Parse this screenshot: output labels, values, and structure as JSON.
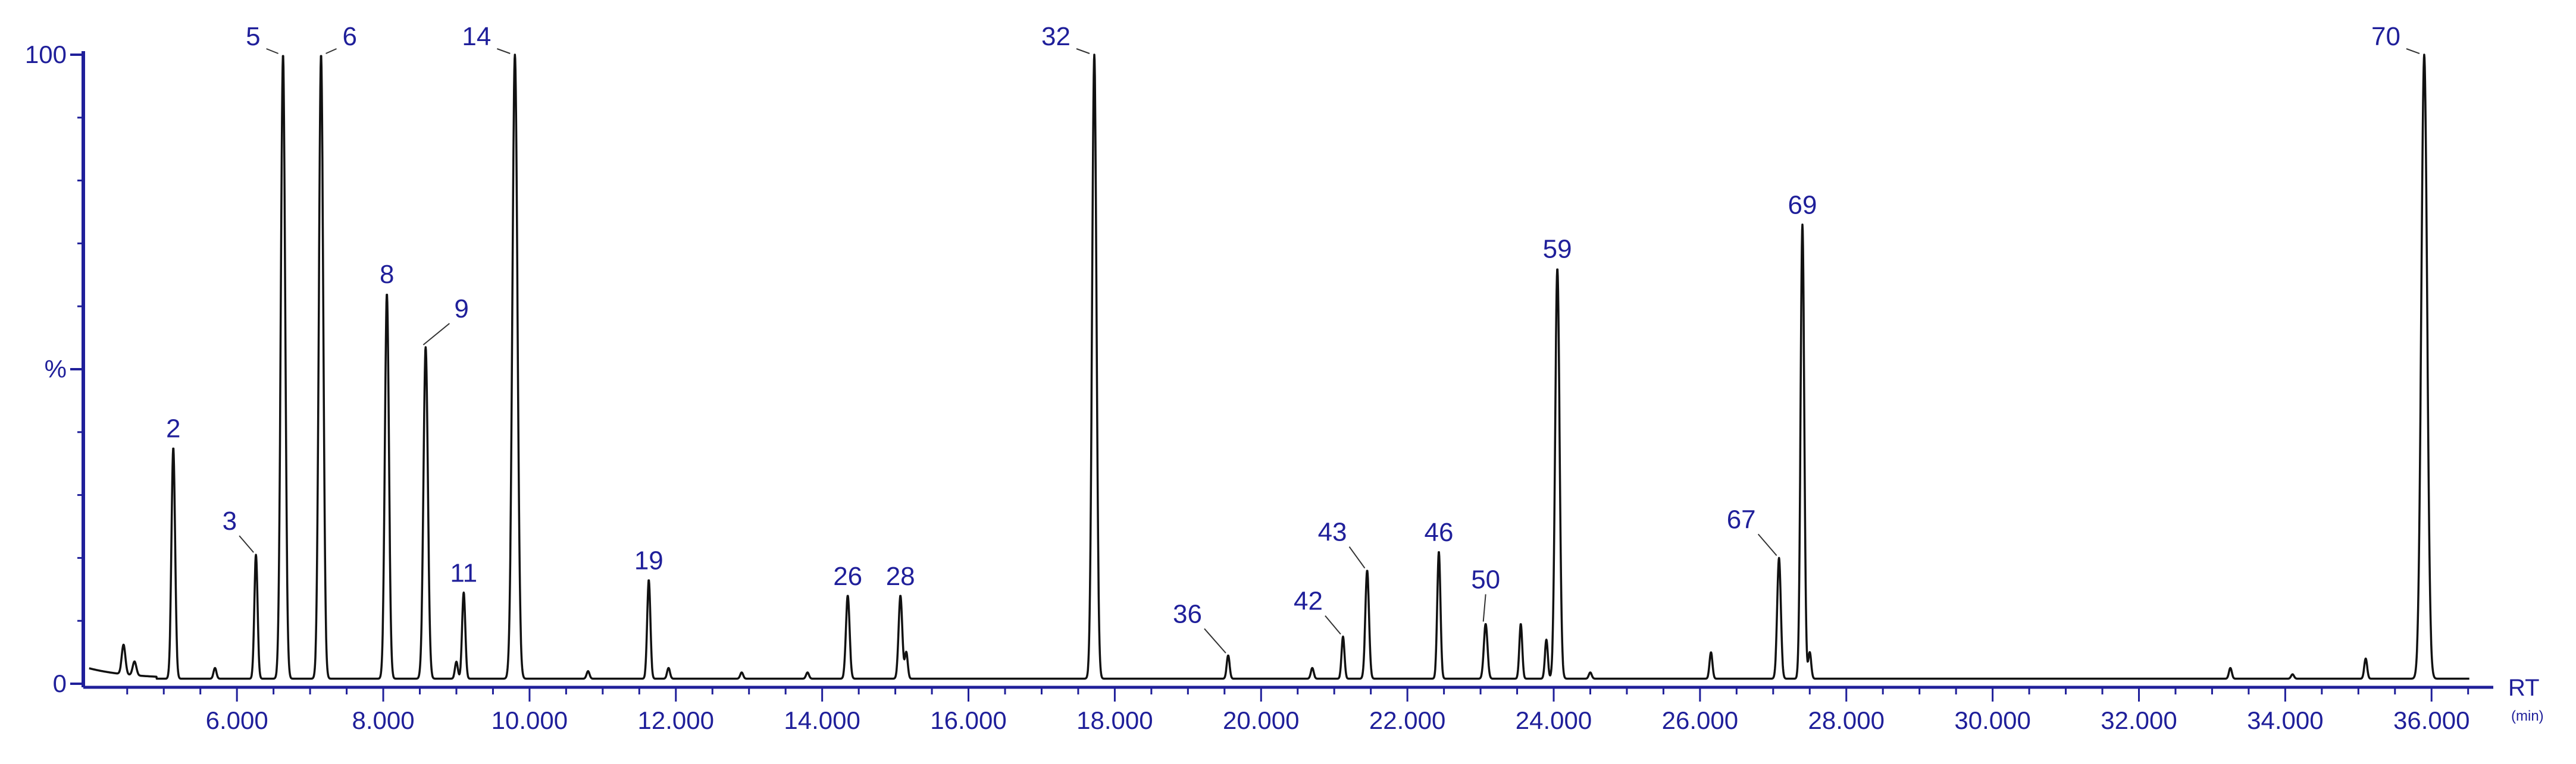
{
  "colors": {
    "trace": "#111111",
    "axis": "#1f1f9a",
    "text": "#1f1f9a"
  },
  "chart_data": {
    "type": "line",
    "title": "",
    "xlabel": "RT",
    "x_unit": "(min)",
    "ylabel": "%",
    "xlim": [
      3.9,
      36.6
    ],
    "ylim": [
      0,
      100
    ],
    "x_ticks": [
      6,
      8,
      10,
      12,
      14,
      16,
      18,
      20,
      22,
      24,
      26,
      28,
      30,
      32,
      34,
      36
    ],
    "x_tick_labels": [
      "6.000",
      "8.000",
      "10.000",
      "12.000",
      "14.000",
      "16.000",
      "18.000",
      "20.000",
      "22.000",
      "24.000",
      "26.000",
      "28.000",
      "30.000",
      "32.000",
      "34.000",
      "36.000"
    ],
    "y_ticks": [
      0,
      50,
      100
    ],
    "y_tick_labels": [
      "0",
      "%",
      "100"
    ],
    "baseline": 0.8,
    "grid": false,
    "peaks": [
      {
        "label": "",
        "rt": 4.45,
        "height": 5.5,
        "width": 0.025
      },
      {
        "label": "",
        "rt": 4.6,
        "height": 3.0,
        "width": 0.025
      },
      {
        "label": "2",
        "rt": 5.13,
        "height": 37.5,
        "width": 0.025
      },
      {
        "label": "",
        "rt": 5.7,
        "height": 2.5,
        "width": 0.02
      },
      {
        "label": "3",
        "rt": 6.26,
        "height": 20.5,
        "width": 0.022
      },
      {
        "label": "5",
        "rt": 6.63,
        "height": 100,
        "width": 0.03
      },
      {
        "label": "6",
        "rt": 7.15,
        "height": 100,
        "width": 0.03
      },
      {
        "label": "8",
        "rt": 8.05,
        "height": 62,
        "width": 0.028
      },
      {
        "label": "9",
        "rt": 8.58,
        "height": 53.5,
        "width": 0.03
      },
      {
        "label": "",
        "rt": 9.0,
        "height": 3.5,
        "width": 0.02
      },
      {
        "label": "11",
        "rt": 9.1,
        "height": 14.5,
        "width": 0.022
      },
      {
        "label": "14",
        "rt": 9.8,
        "height": 100,
        "width": 0.035
      },
      {
        "label": "",
        "rt": 10.8,
        "height": 2.0,
        "width": 0.02
      },
      {
        "label": "19",
        "rt": 11.63,
        "height": 16.5,
        "width": 0.022
      },
      {
        "label": "",
        "rt": 11.9,
        "height": 2.5,
        "width": 0.02
      },
      {
        "label": "",
        "rt": 12.9,
        "height": 1.8,
        "width": 0.02
      },
      {
        "label": "",
        "rt": 13.8,
        "height": 1.8,
        "width": 0.02
      },
      {
        "label": "26",
        "rt": 14.35,
        "height": 14,
        "width": 0.025
      },
      {
        "label": "28",
        "rt": 15.07,
        "height": 14,
        "width": 0.025
      },
      {
        "label": "",
        "rt": 15.15,
        "height": 5.0,
        "width": 0.02
      },
      {
        "label": "32",
        "rt": 17.72,
        "height": 100,
        "width": 0.03
      },
      {
        "label": "36",
        "rt": 19.55,
        "height": 4.5,
        "width": 0.02
      },
      {
        "label": "",
        "rt": 20.7,
        "height": 2.5,
        "width": 0.02
      },
      {
        "label": "42",
        "rt": 21.12,
        "height": 7.5,
        "width": 0.02
      },
      {
        "label": "43",
        "rt": 21.45,
        "height": 18,
        "width": 0.025
      },
      {
        "label": "46",
        "rt": 22.43,
        "height": 21,
        "width": 0.022
      },
      {
        "label": "50",
        "rt": 23.07,
        "height": 9.5,
        "width": 0.025
      },
      {
        "label": "",
        "rt": 23.55,
        "height": 9.5,
        "width": 0.02
      },
      {
        "label": "",
        "rt": 23.9,
        "height": 7.0,
        "width": 0.02
      },
      {
        "label": "59",
        "rt": 24.05,
        "height": 66,
        "width": 0.03
      },
      {
        "label": "",
        "rt": 24.5,
        "height": 1.8,
        "width": 0.02
      },
      {
        "label": "",
        "rt": 26.15,
        "height": 5.0,
        "width": 0.02
      },
      {
        "label": "67",
        "rt": 27.08,
        "height": 20,
        "width": 0.025
      },
      {
        "label": "69",
        "rt": 27.4,
        "height": 73,
        "width": 0.025
      },
      {
        "label": "",
        "rt": 27.5,
        "height": 5.0,
        "width": 0.02
      },
      {
        "label": "",
        "rt": 33.25,
        "height": 2.5,
        "width": 0.02
      },
      {
        "label": "",
        "rt": 34.1,
        "height": 1.5,
        "width": 0.02
      },
      {
        "label": "",
        "rt": 35.1,
        "height": 4.0,
        "width": 0.02
      },
      {
        "label": "70",
        "rt": 35.9,
        "height": 100,
        "width": 0.04
      }
    ]
  }
}
